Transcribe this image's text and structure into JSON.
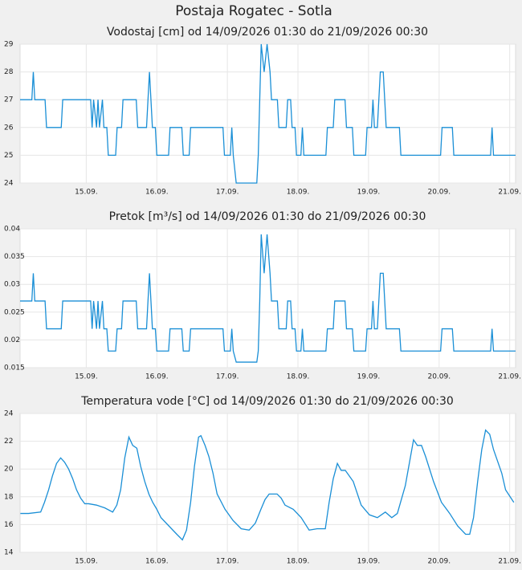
{
  "title": "Postaja Rogatec - Sotla",
  "chart_data": [
    {
      "type": "line",
      "title": "Vodostaj [cm] od 14/09/2026 01:30 do 21/09/2026 00:30",
      "x": [
        1.5,
        5.5,
        6,
        6.5,
        10,
        10.5,
        15.5,
        16,
        25.5,
        26,
        26.5,
        27.5,
        28,
        28.5,
        29.5,
        30,
        31,
        31.5,
        34,
        34.5,
        36,
        36.5,
        41,
        41.5,
        44.5,
        45,
        45.5,
        46,
        46.5,
        47.5,
        48,
        52,
        52.5,
        56.5,
        57,
        59,
        59.5,
        70.5,
        71,
        73,
        73.5,
        74,
        75,
        82,
        82.5,
        83,
        83.5,
        84.5,
        85.5,
        86.5,
        87,
        89,
        89.5,
        92,
        92.5,
        93.5,
        94,
        95,
        95.5,
        97,
        97.5,
        98,
        105.5,
        106,
        108,
        108.5,
        112,
        112.5,
        114.5,
        115,
        119,
        119.5,
        121,
        121.5,
        122,
        123,
        123.5,
        124,
        125,
        125.5,
        126,
        130.5,
        131,
        144.5,
        145,
        148.5,
        149,
        161.5,
        162,
        162.5,
        170
      ],
      "series": [
        {
          "color": "#1a8fd6",
          "values": [
            27,
            27,
            28,
            27,
            27,
            26,
            26,
            27,
            27,
            26,
            27,
            26,
            27,
            26,
            27,
            26,
            26,
            25,
            25,
            26,
            26,
            27,
            27,
            26,
            26,
            27,
            28,
            27,
            26,
            26,
            25,
            25,
            26,
            26,
            25,
            25,
            26,
            26,
            25,
            25,
            26,
            25,
            24,
            24,
            25,
            27,
            29,
            28,
            29,
            28,
            27,
            27,
            26,
            26,
            27,
            27,
            26,
            26,
            25,
            25,
            26,
            25,
            25,
            26,
            26,
            27,
            27,
            26,
            26,
            25,
            25,
            26,
            26,
            27,
            26,
            26,
            27,
            28,
            28,
            27,
            26,
            26,
            25,
            25,
            26,
            26,
            25,
            25,
            26,
            25,
            25
          ]
        }
      ],
      "xlim": [
        1.5,
        170
      ],
      "ylim": [
        24,
        29
      ],
      "yticks": [
        24,
        25,
        26,
        27,
        28,
        29
      ],
      "xticks": [
        {
          "value": 24,
          "label": "15.09."
        },
        {
          "value": 48,
          "label": "16.09."
        },
        {
          "value": 72,
          "label": "17.09."
        },
        {
          "value": 96,
          "label": "18.09."
        },
        {
          "value": 120,
          "label": "19.09."
        },
        {
          "value": 144,
          "label": "20.09."
        },
        {
          "value": 168,
          "label": "21.09."
        }
      ],
      "grid": true
    },
    {
      "type": "line",
      "title": "Pretok [m³/s] od 14/09/2026 01:30 do 21/09/2026 00:30",
      "x": [
        1.5,
        5.5,
        6,
        6.5,
        10,
        10.5,
        15.5,
        16,
        25.5,
        26,
        26.5,
        27.5,
        28,
        28.5,
        29.5,
        30,
        31,
        31.5,
        34,
        34.5,
        36,
        36.5,
        41,
        41.5,
        44.5,
        45,
        45.5,
        46,
        46.5,
        47.5,
        48,
        52,
        52.5,
        56.5,
        57,
        59,
        59.5,
        70.5,
        71,
        73,
        73.5,
        74,
        75,
        82,
        82.5,
        83,
        83.5,
        84.5,
        85.5,
        86.5,
        87,
        89,
        89.5,
        92,
        92.5,
        93.5,
        94,
        95,
        95.5,
        97,
        97.5,
        98,
        105.5,
        106,
        108,
        108.5,
        112,
        112.5,
        114.5,
        115,
        119,
        119.5,
        121,
        121.5,
        122,
        123,
        123.5,
        124,
        125,
        125.5,
        126,
        130.5,
        131,
        144.5,
        145,
        148.5,
        149,
        161.5,
        162,
        162.5,
        170
      ],
      "series": [
        {
          "color": "#1a8fd6",
          "values": [
            0.027,
            0.027,
            0.032,
            0.027,
            0.027,
            0.022,
            0.022,
            0.027,
            0.027,
            0.022,
            0.027,
            0.022,
            0.027,
            0.022,
            0.027,
            0.022,
            0.022,
            0.018,
            0.018,
            0.022,
            0.022,
            0.027,
            0.027,
            0.022,
            0.022,
            0.027,
            0.032,
            0.027,
            0.022,
            0.022,
            0.018,
            0.018,
            0.022,
            0.022,
            0.018,
            0.018,
            0.022,
            0.022,
            0.018,
            0.018,
            0.022,
            0.018,
            0.016,
            0.016,
            0.018,
            0.027,
            0.039,
            0.032,
            0.039,
            0.032,
            0.027,
            0.027,
            0.022,
            0.022,
            0.027,
            0.027,
            0.022,
            0.022,
            0.018,
            0.018,
            0.022,
            0.018,
            0.018,
            0.022,
            0.022,
            0.027,
            0.027,
            0.022,
            0.022,
            0.018,
            0.018,
            0.022,
            0.022,
            0.027,
            0.022,
            0.022,
            0.027,
            0.032,
            0.032,
            0.027,
            0.022,
            0.022,
            0.018,
            0.018,
            0.022,
            0.022,
            0.018,
            0.018,
            0.022,
            0.018,
            0.018
          ]
        }
      ],
      "xlim": [
        1.5,
        170
      ],
      "ylim": [
        0.015,
        0.04
      ],
      "yticks": [
        0.015,
        0.02,
        0.025,
        0.03,
        0.035,
        0.04
      ],
      "xticks": [
        {
          "value": 24,
          "label": "15.09."
        },
        {
          "value": 48,
          "label": "16.09."
        },
        {
          "value": 72,
          "label": "17.09."
        },
        {
          "value": 96,
          "label": "18.09."
        },
        {
          "value": 120,
          "label": "19.09."
        },
        {
          "value": 144,
          "label": "20.09."
        },
        {
          "value": 168,
          "label": "21.09."
        }
      ],
      "grid": true
    },
    {
      "type": "line",
      "title": "Temperatura vode [°C] od 14/09/2026 01:30 do 21/09/2026 00:30",
      "x": [
        1.6,
        4.4,
        8.5,
        9.8,
        11.2,
        12.5,
        13.9,
        15.3,
        16.6,
        18,
        19.4,
        20.7,
        22.1,
        23.5,
        24.8,
        27.5,
        30.3,
        33,
        34.4,
        35.7,
        37.1,
        38.5,
        39.8,
        41.2,
        42.5,
        43.9,
        45.3,
        46.6,
        48,
        49.4,
        52.1,
        54.8,
        56.7,
        58.1,
        59.5,
        60.8,
        62.2,
        63,
        64.4,
        65.7,
        67.1,
        68.5,
        71.2,
        73.9,
        76.7,
        79.4,
        81.5,
        83.4,
        84.8,
        86.2,
        88.9,
        90.3,
        91.6,
        94.4,
        97.1,
        99.8,
        102.5,
        105.3,
        106.6,
        108,
        109.4,
        110.7,
        112.1,
        114.8,
        117.5,
        120.3,
        123,
        125.7,
        127.9,
        129.8,
        132.5,
        135.3,
        136.6,
        138,
        139.4,
        142.1,
        144.8,
        147.6,
        150.3,
        153,
        154.4,
        155.7,
        157.1,
        158.5,
        159.8,
        161.2,
        162.5,
        165.3,
        166.6,
        169.4
      ],
      "series": [
        {
          "color": "#1a8fd6",
          "values": [
            16.8,
            16.8,
            16.9,
            17.6,
            18.5,
            19.5,
            20.4,
            20.8,
            20.5,
            20,
            19.3,
            18.5,
            17.9,
            17.5,
            17.5,
            17.4,
            17.2,
            16.9,
            17.4,
            18.5,
            20.8,
            22.3,
            21.7,
            21.5,
            20.2,
            19.1,
            18.2,
            17.6,
            17.1,
            16.5,
            15.9,
            15.3,
            14.9,
            15.6,
            17.6,
            20.2,
            22.3,
            22.4,
            21.7,
            20.9,
            19.7,
            18.2,
            17.1,
            16.3,
            15.7,
            15.6,
            16.1,
            17.1,
            17.8,
            18.2,
            18.2,
            17.9,
            17.4,
            17.1,
            16.5,
            15.6,
            15.7,
            15.7,
            17.6,
            19.3,
            20.4,
            19.9,
            19.9,
            19.1,
            17.4,
            16.7,
            16.5,
            16.9,
            16.5,
            16.8,
            18.8,
            22.1,
            21.7,
            21.7,
            20.9,
            19.1,
            17.6,
            16.8,
            15.9,
            15.3,
            15.3,
            16.5,
            19.1,
            21.4,
            22.8,
            22.5,
            21.4,
            19.7,
            18.5,
            17.6
          ]
        }
      ],
      "xlim": [
        1.5,
        170
      ],
      "ylim": [
        14,
        24
      ],
      "yticks": [
        14,
        16,
        18,
        20,
        22,
        24
      ],
      "xticks": [
        {
          "value": 24,
          "label": "15.09."
        },
        {
          "value": 48,
          "label": "16.09."
        },
        {
          "value": 72,
          "label": "17.09."
        },
        {
          "value": 96,
          "label": "18.09."
        },
        {
          "value": 120,
          "label": "19.09."
        },
        {
          "value": 144,
          "label": "20.09."
        },
        {
          "value": 168,
          "label": "21.09."
        }
      ],
      "grid": true
    }
  ]
}
